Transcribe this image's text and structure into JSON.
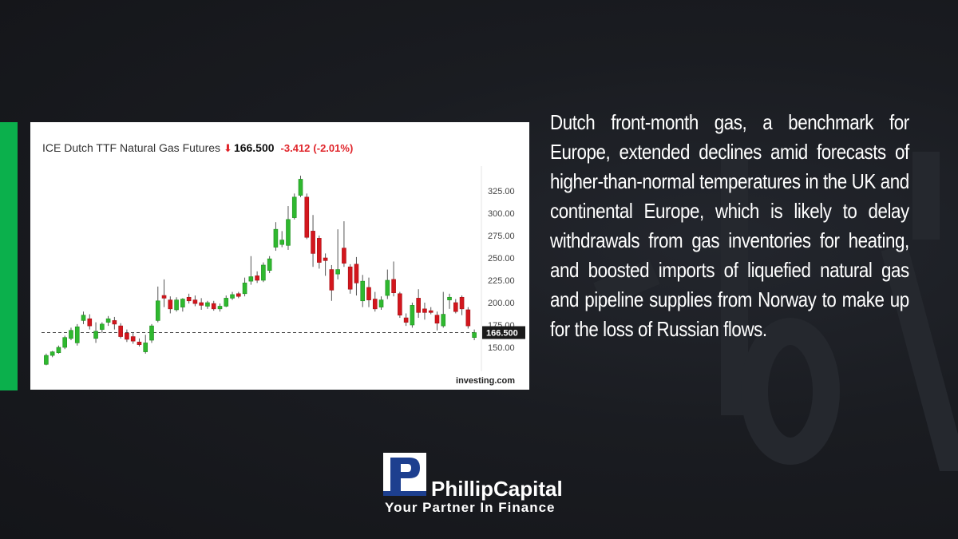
{
  "header": {
    "title": "ICE Dutch TTF Natural Gas Futures",
    "arrow": "⬇",
    "last": "166.500",
    "change": "-3.412",
    "change_pct": "(-2.01%)"
  },
  "source": "investing.com",
  "body_text": "Dutch front-month gas, a benchmark for Europe, extended declines amid forecasts of higher-than-normal temperatures in the UK and continental Europe, which is likely to delay withdrawals from gas inventories for heating, and boosted imports of liquefied natural gas and pipeline supplies from Norway to make up for the loss of Russian flows.",
  "logo": {
    "name": "PhillipCapital",
    "tagline": "Your Partner In Finance"
  },
  "colors": {
    "up": "#2fb82f",
    "down": "#d3161d",
    "accent_green": "#0bb04c"
  },
  "chart_data": {
    "type": "candlestick",
    "title": "ICE Dutch TTF Natural Gas Futures",
    "ylim": [
      137,
      345
    ],
    "y_ticks": [
      "150.00",
      "175.00",
      "200.00",
      "225.00",
      "250.00",
      "275.00",
      "300.00",
      "325.00"
    ],
    "y_tick_values": [
      150,
      175,
      200,
      225,
      250,
      275,
      300,
      325
    ],
    "last_price": 166.5,
    "last_price_label": "166.500",
    "candles": [
      {
        "o": 131,
        "h": 143,
        "l": 130,
        "c": 141
      },
      {
        "o": 141,
        "h": 146,
        "l": 139,
        "c": 145
      },
      {
        "o": 144,
        "h": 152,
        "l": 143,
        "c": 150
      },
      {
        "o": 150,
        "h": 163,
        "l": 148,
        "c": 161
      },
      {
        "o": 160,
        "h": 172,
        "l": 158,
        "c": 169
      },
      {
        "o": 155,
        "h": 176,
        "l": 152,
        "c": 173
      },
      {
        "o": 180,
        "h": 190,
        "l": 176,
        "c": 186
      },
      {
        "o": 182,
        "h": 187,
        "l": 170,
        "c": 174
      },
      {
        "o": 160,
        "h": 178,
        "l": 155,
        "c": 168
      },
      {
        "o": 170,
        "h": 178,
        "l": 166,
        "c": 176
      },
      {
        "o": 178,
        "h": 185,
        "l": 174,
        "c": 182
      },
      {
        "o": 180,
        "h": 184,
        "l": 170,
        "c": 176
      },
      {
        "o": 174,
        "h": 177,
        "l": 160,
        "c": 162
      },
      {
        "o": 166,
        "h": 170,
        "l": 156,
        "c": 159
      },
      {
        "o": 162,
        "h": 166,
        "l": 154,
        "c": 157
      },
      {
        "o": 156,
        "h": 160,
        "l": 151,
        "c": 153
      },
      {
        "o": 145,
        "h": 164,
        "l": 143,
        "c": 155
      },
      {
        "o": 158,
        "h": 176,
        "l": 155,
        "c": 174
      },
      {
        "o": 180,
        "h": 218,
        "l": 178,
        "c": 202
      },
      {
        "o": 208,
        "h": 226,
        "l": 195,
        "c": 205
      },
      {
        "o": 203,
        "h": 207,
        "l": 188,
        "c": 193
      },
      {
        "o": 192,
        "h": 206,
        "l": 190,
        "c": 203
      },
      {
        "o": 195,
        "h": 205,
        "l": 190,
        "c": 204
      },
      {
        "o": 206,
        "h": 210,
        "l": 199,
        "c": 202
      },
      {
        "o": 203,
        "h": 208,
        "l": 196,
        "c": 199
      },
      {
        "o": 200,
        "h": 205,
        "l": 192,
        "c": 197
      },
      {
        "o": 196,
        "h": 202,
        "l": 193,
        "c": 200
      },
      {
        "o": 199,
        "h": 202,
        "l": 191,
        "c": 193
      },
      {
        "o": 193,
        "h": 199,
        "l": 190,
        "c": 196
      },
      {
        "o": 196,
        "h": 208,
        "l": 195,
        "c": 205
      },
      {
        "o": 205,
        "h": 212,
        "l": 203,
        "c": 209
      },
      {
        "o": 210,
        "h": 212,
        "l": 205,
        "c": 207
      },
      {
        "o": 210,
        "h": 228,
        "l": 207,
        "c": 222
      },
      {
        "o": 224,
        "h": 252,
        "l": 220,
        "c": 229
      },
      {
        "o": 230,
        "h": 235,
        "l": 222,
        "c": 225
      },
      {
        "o": 225,
        "h": 245,
        "l": 223,
        "c": 242
      },
      {
        "o": 236,
        "h": 252,
        "l": 233,
        "c": 249
      },
      {
        "o": 262,
        "h": 290,
        "l": 258,
        "c": 282
      },
      {
        "o": 265,
        "h": 280,
        "l": 262,
        "c": 270
      },
      {
        "o": 264,
        "h": 308,
        "l": 259,
        "c": 293
      },
      {
        "o": 295,
        "h": 322,
        "l": 293,
        "c": 318
      },
      {
        "o": 320,
        "h": 342,
        "l": 318,
        "c": 338
      },
      {
        "o": 318,
        "h": 322,
        "l": 271,
        "c": 273
      },
      {
        "o": 280,
        "h": 298,
        "l": 240,
        "c": 255
      },
      {
        "o": 272,
        "h": 275,
        "l": 238,
        "c": 245
      },
      {
        "o": 250,
        "h": 255,
        "l": 230,
        "c": 247
      },
      {
        "o": 237,
        "h": 242,
        "l": 202,
        "c": 214
      },
      {
        "o": 232,
        "h": 282,
        "l": 226,
        "c": 237
      },
      {
        "o": 261,
        "h": 291,
        "l": 240,
        "c": 244
      },
      {
        "o": 240,
        "h": 243,
        "l": 210,
        "c": 215
      },
      {
        "o": 243,
        "h": 251,
        "l": 208,
        "c": 222
      },
      {
        "o": 202,
        "h": 231,
        "l": 195,
        "c": 224
      },
      {
        "o": 217,
        "h": 228,
        "l": 195,
        "c": 203
      },
      {
        "o": 204,
        "h": 212,
        "l": 190,
        "c": 193
      },
      {
        "o": 195,
        "h": 207,
        "l": 192,
        "c": 203
      },
      {
        "o": 208,
        "h": 237,
        "l": 204,
        "c": 225
      },
      {
        "o": 226,
        "h": 246,
        "l": 207,
        "c": 211
      },
      {
        "o": 210,
        "h": 212,
        "l": 183,
        "c": 186
      },
      {
        "o": 183,
        "h": 188,
        "l": 174,
        "c": 178
      },
      {
        "o": 175,
        "h": 200,
        "l": 172,
        "c": 197
      },
      {
        "o": 205,
        "h": 215,
        "l": 183,
        "c": 189
      },
      {
        "o": 193,
        "h": 200,
        "l": 181,
        "c": 189
      },
      {
        "o": 191,
        "h": 195,
        "l": 187,
        "c": 189
      },
      {
        "o": 186,
        "h": 190,
        "l": 169,
        "c": 177
      },
      {
        "o": 174,
        "h": 212,
        "l": 172,
        "c": 187
      },
      {
        "o": 203,
        "h": 210,
        "l": 193,
        "c": 206
      },
      {
        "o": 200,
        "h": 204,
        "l": 188,
        "c": 190
      },
      {
        "o": 206,
        "h": 208,
        "l": 186,
        "c": 193
      },
      {
        "o": 192,
        "h": 195,
        "l": 171,
        "c": 174
      },
      {
        "o": 161,
        "h": 170,
        "l": 158,
        "c": 166.5
      }
    ]
  }
}
